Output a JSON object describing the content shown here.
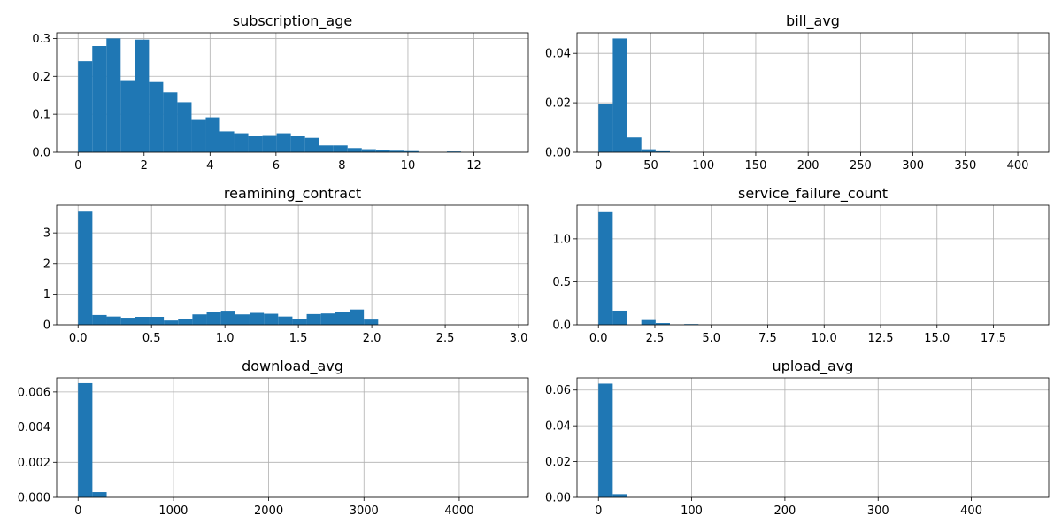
{
  "figure": {
    "bar_color": "#1f77b4",
    "grid_color": "#b0b0b0",
    "axes_color": "#000000",
    "background": "#ffffff"
  },
  "chart_data": [
    {
      "type": "bar",
      "subtype": "histogram",
      "title": "subscription_age",
      "xlabel": "",
      "ylabel": "",
      "xlim": [
        -0.65,
        13.65
      ],
      "ylim": [
        0,
        0.315
      ],
      "grid": true,
      "xticks": [
        0,
        2,
        4,
        6,
        8,
        10,
        12
      ],
      "xtick_labels": [
        "0",
        "2",
        "4",
        "6",
        "8",
        "10",
        "12"
      ],
      "yticks": [
        0,
        0.1,
        0.2,
        0.3
      ],
      "ytick_labels": [
        "0.0",
        "0.1",
        "0.2",
        "0.3"
      ],
      "bin_start": 0,
      "bin_width": 0.43,
      "values": [
        0.24,
        0.28,
        0.3,
        0.19,
        0.297,
        0.185,
        0.158,
        0.132,
        0.085,
        0.092,
        0.055,
        0.05,
        0.042,
        0.043,
        0.05,
        0.042,
        0.038,
        0.018,
        0.018,
        0.011,
        0.008,
        0.006,
        0.004,
        0.003,
        0,
        0,
        0.002,
        0,
        0,
        0
      ]
    },
    {
      "type": "bar",
      "subtype": "histogram",
      "title": "bill_avg",
      "xlabel": "",
      "ylabel": "",
      "xlim": [
        -20.5,
        429.5
      ],
      "ylim": [
        0,
        0.0483
      ],
      "grid": true,
      "xticks": [
        0,
        50,
        100,
        150,
        200,
        250,
        300,
        350,
        400
      ],
      "xtick_labels": [
        "0",
        "50",
        "100",
        "150",
        "200",
        "250",
        "300",
        "350",
        "400"
      ],
      "yticks": [
        0,
        0.02,
        0.04
      ],
      "ytick_labels": [
        "0.00",
        "0.02",
        "0.04"
      ],
      "bin_start": 0,
      "bin_width": 13.63,
      "values": [
        0.0195,
        0.046,
        0.006,
        0.0012,
        0.0004,
        0,
        0,
        0,
        0,
        0,
        0,
        0,
        0,
        0,
        0,
        0,
        0,
        0,
        0,
        0,
        0,
        0,
        0,
        0,
        0,
        0,
        0,
        0,
        0,
        0
      ]
    },
    {
      "type": "bar",
      "subtype": "histogram",
      "title": "reamining_contract",
      "xlabel": "",
      "ylabel": "",
      "xlim": [
        -0.146,
        3.066
      ],
      "ylim": [
        0,
        3.9
      ],
      "grid": true,
      "xticks": [
        0,
        0.5,
        1.0,
        1.5,
        2.0,
        2.5,
        3.0
      ],
      "xtick_labels": [
        "0.0",
        "0.5",
        "1.0",
        "1.5",
        "2.0",
        "2.5",
        "3.0"
      ],
      "yticks": [
        0,
        1,
        2,
        3
      ],
      "ytick_labels": [
        "0",
        "1",
        "2",
        "3"
      ],
      "bin_start": 0,
      "bin_width": 0.0973,
      "values": [
        3.72,
        0.32,
        0.27,
        0.23,
        0.26,
        0.26,
        0.14,
        0.2,
        0.34,
        0.43,
        0.46,
        0.34,
        0.39,
        0.36,
        0.27,
        0.19,
        0.35,
        0.37,
        0.42,
        0.5,
        0.17,
        0,
        0,
        0,
        0,
        0,
        0,
        0,
        0,
        0
      ]
    },
    {
      "type": "bar",
      "subtype": "histogram",
      "title": "service_failure_count",
      "xlabel": "",
      "ylabel": "",
      "xlim": [
        -0.95,
        19.95
      ],
      "ylim": [
        0,
        1.39
      ],
      "grid": true,
      "xticks": [
        0,
        2.5,
        5.0,
        7.5,
        10.0,
        12.5,
        15.0,
        17.5
      ],
      "xtick_labels": [
        "0.0",
        "2.5",
        "5.0",
        "7.5",
        "10.0",
        "12.5",
        "15.0",
        "17.5"
      ],
      "yticks": [
        0,
        0.5,
        1.0
      ],
      "ytick_labels": [
        "0.0",
        "0.5",
        "1.0"
      ],
      "bin_start": 0,
      "bin_width": 0.6333,
      "values": [
        1.32,
        0.165,
        0,
        0.055,
        0.02,
        0,
        0.008,
        0,
        0,
        0,
        0,
        0,
        0,
        0,
        0,
        0,
        0,
        0,
        0,
        0,
        0,
        0,
        0,
        0,
        0,
        0,
        0,
        0,
        0,
        0
      ]
    },
    {
      "type": "bar",
      "subtype": "histogram",
      "title": "download_avg",
      "xlabel": "",
      "ylabel": "",
      "xlim": [
        -225,
        4725
      ],
      "ylim": [
        0,
        0.0068
      ],
      "grid": true,
      "xticks": [
        0,
        1000,
        2000,
        3000,
        4000
      ],
      "xtick_labels": [
        "0",
        "1000",
        "2000",
        "3000",
        "4000"
      ],
      "yticks": [
        0,
        0.002,
        0.004,
        0.006
      ],
      "ytick_labels": [
        "0.000",
        "0.002",
        "0.004",
        "0.006"
      ],
      "bin_start": 0,
      "bin_width": 150,
      "values": [
        0.0065,
        0.0003,
        0,
        0,
        0,
        0,
        0,
        0,
        0,
        0,
        0,
        0,
        0,
        0,
        0,
        0,
        0,
        0,
        0,
        0,
        0,
        0,
        0,
        0,
        0,
        0,
        0,
        0,
        0,
        0
      ]
    },
    {
      "type": "bar",
      "subtype": "histogram",
      "title": "upload_avg",
      "xlabel": "",
      "ylabel": "",
      "xlim": [
        -23,
        483
      ],
      "ylim": [
        0,
        0.0668
      ],
      "grid": true,
      "xticks": [
        0,
        100,
        200,
        300,
        400
      ],
      "xtick_labels": [
        "0",
        "100",
        "200",
        "300",
        "400"
      ],
      "yticks": [
        0,
        0.02,
        0.04,
        0.06
      ],
      "ytick_labels": [
        "0.00",
        "0.02",
        "0.04",
        "0.06"
      ],
      "bin_start": 0,
      "bin_width": 15.33,
      "values": [
        0.0636,
        0.0018,
        0,
        0,
        0,
        0,
        0,
        0,
        0,
        0,
        0,
        0,
        0,
        0,
        0,
        0,
        0,
        0,
        0,
        0,
        0,
        0,
        0,
        0,
        0,
        0,
        0,
        0,
        0,
        0
      ]
    }
  ]
}
